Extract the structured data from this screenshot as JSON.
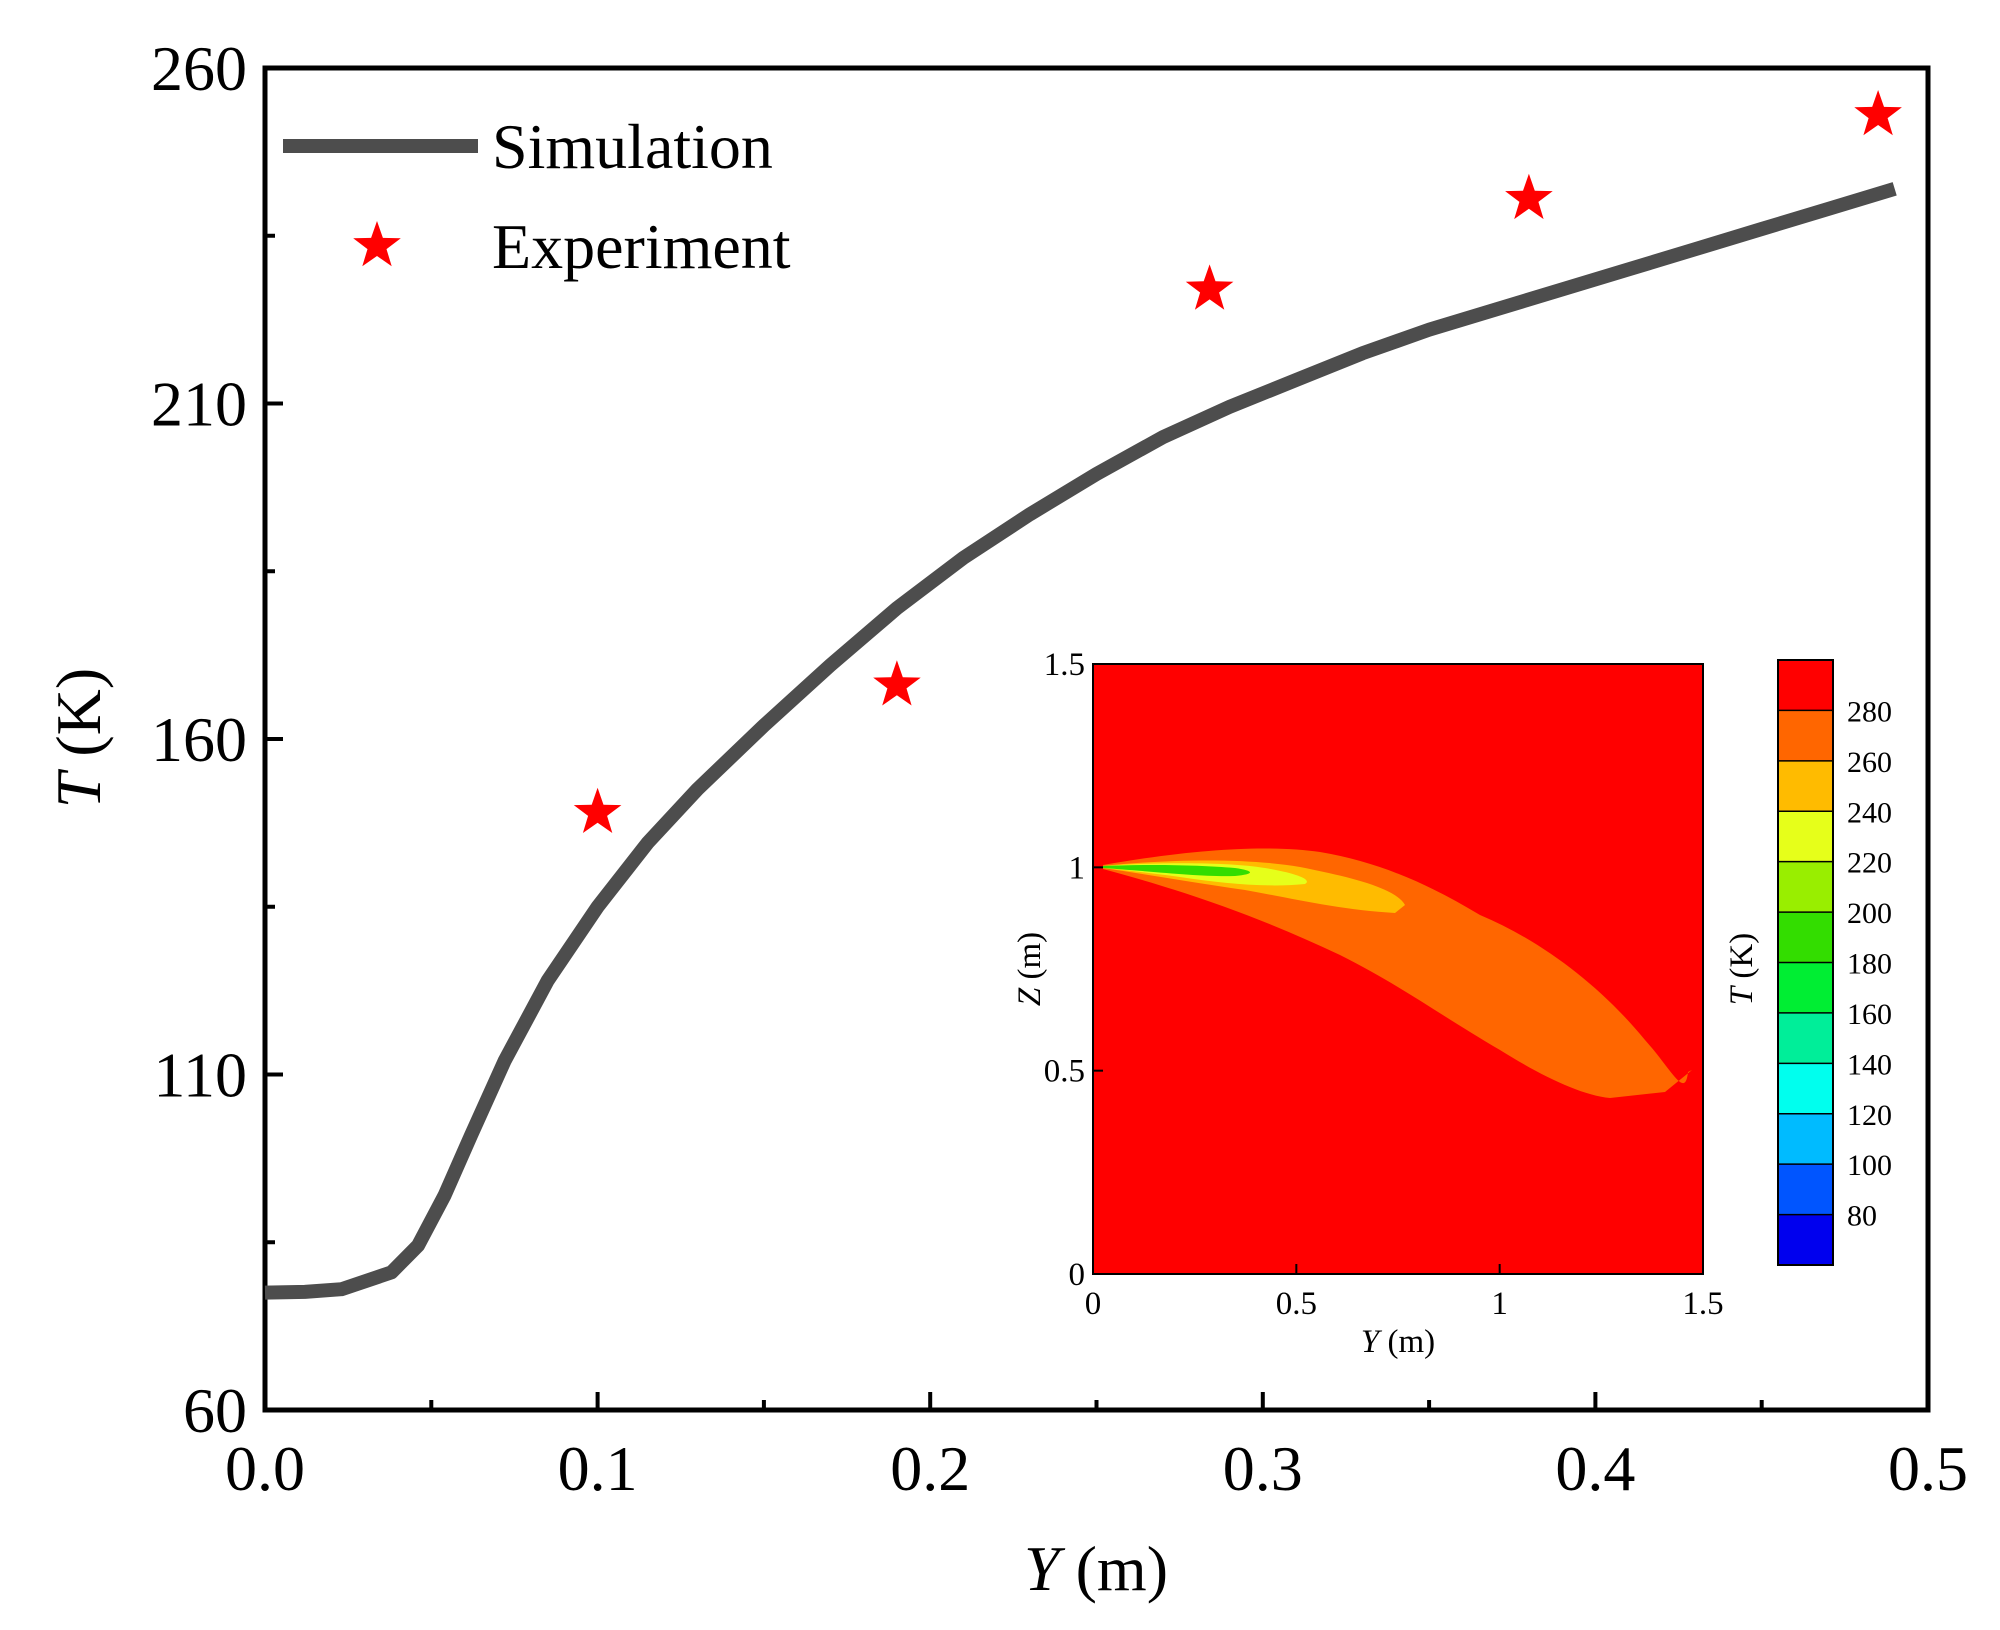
{
  "chart_data": [
    {
      "type": "line",
      "xlabel": {
        "var": "Y",
        "unit": " (m)"
      },
      "ylabel": {
        "var": "T",
        "unit": " (K)"
      },
      "xlim": [
        0.0,
        0.5
      ],
      "ylim": [
        60,
        260
      ],
      "x_ticks": [
        0.0,
        0.1,
        0.2,
        0.3,
        0.4,
        0.5
      ],
      "x_tick_labels": [
        "0.0",
        "0.1",
        "0.2",
        "0.3",
        "0.4",
        "0.5"
      ],
      "y_ticks": [
        60,
        110,
        160,
        210,
        260
      ],
      "y_tick_labels": [
        "60",
        "110",
        "160",
        "210",
        "260"
      ],
      "legend": {
        "position": "top-left"
      },
      "series": [
        {
          "name": "Simulation",
          "kind": "line",
          "color": "#4d4d4d",
          "points": [
            [
              0.0,
              77.5
            ],
            [
              0.012,
              77.6
            ],
            [
              0.023,
              78.0
            ],
            [
              0.038,
              80.5
            ],
            [
              0.046,
              84.5
            ],
            [
              0.054,
              92
            ],
            [
              0.062,
              101
            ],
            [
              0.072,
              112
            ],
            [
              0.085,
              124
            ],
            [
              0.1,
              135
            ],
            [
              0.115,
              144.5
            ],
            [
              0.13,
              152.5
            ],
            [
              0.15,
              162
            ],
            [
              0.17,
              171
            ],
            [
              0.19,
              179.5
            ],
            [
              0.21,
              187
            ],
            [
              0.23,
              193.5
            ],
            [
              0.25,
              199.5
            ],
            [
              0.27,
              205
            ],
            [
              0.29,
              209.5
            ],
            [
              0.31,
              213.5
            ],
            [
              0.33,
              217.5
            ],
            [
              0.35,
              221
            ],
            [
              0.37,
              224
            ],
            [
              0.39,
              227
            ],
            [
              0.41,
              230
            ],
            [
              0.43,
              233
            ],
            [
              0.45,
              236
            ],
            [
              0.47,
              239
            ],
            [
              0.49,
              242
            ]
          ]
        },
        {
          "name": "Experiment",
          "kind": "scatter",
          "marker": "star",
          "color": "#ff0000",
          "points": [
            [
              0.1,
              149
            ],
            [
              0.19,
              168
            ],
            [
              0.284,
              227
            ],
            [
              0.38,
              240.5
            ],
            [
              0.485,
              253
            ]
          ]
        }
      ]
    },
    {
      "type": "heatmap",
      "description_key": "inset-contour",
      "xlabel": {
        "var": "Y",
        "unit": " (m)"
      },
      "ylabel": {
        "var": "Z",
        "unit": " (m)"
      },
      "xlim": [
        0,
        1.5
      ],
      "ylim": [
        0,
        1.5
      ],
      "x_tick_labels": [
        "0",
        "0.5",
        "1",
        "1.5"
      ],
      "y_tick_labels": [
        "0",
        "0.5",
        "1",
        "1.5"
      ],
      "colorbar": {
        "label": {
          "var": "T",
          "unit": " (K)"
        },
        "levels": [
          "280",
          "260",
          "240",
          "220",
          "200",
          "180",
          "160",
          "140",
          "120",
          "100",
          "80"
        ],
        "colors": [
          "#ff0000",
          "#ff6600",
          "#ffbb00",
          "#e6ff1a",
          "#99ee00",
          "#33dd00",
          "#00ee33",
          "#00ee99",
          "#00ffee",
          "#00bbff",
          "#0055ff",
          "#0000ee"
        ]
      }
    }
  ]
}
